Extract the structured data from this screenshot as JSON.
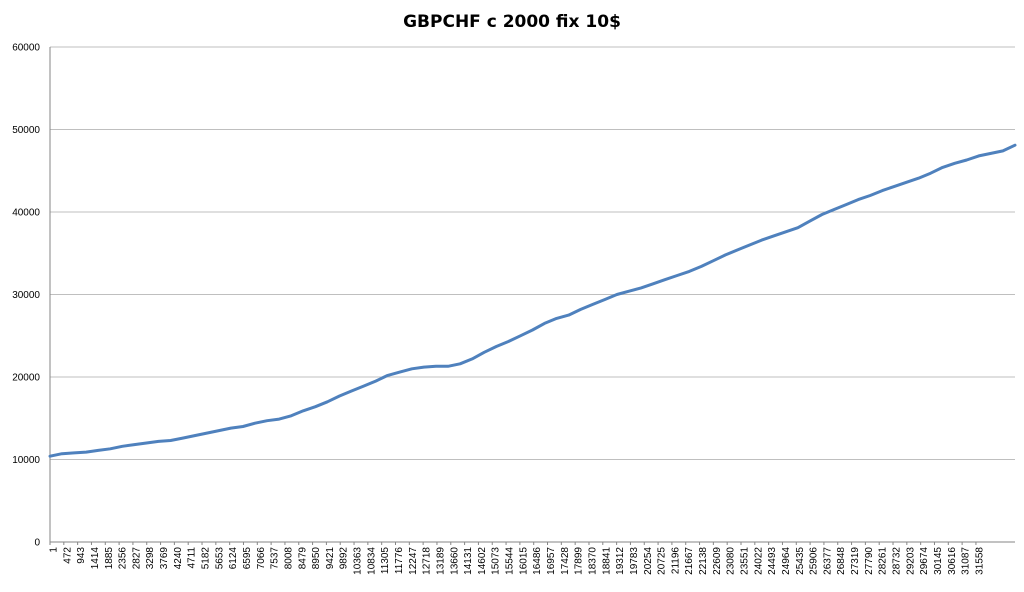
{
  "chart_data": {
    "type": "line",
    "title": "GBPCHF c 2000 fix 10$",
    "xlabel": "",
    "ylabel": "",
    "ylim": [
      0,
      60000
    ],
    "yticks": [
      0,
      10000,
      20000,
      30000,
      40000,
      50000,
      60000
    ],
    "ytick_labels": [
      "0",
      "10000",
      "20000",
      "30000",
      "40000",
      "50000",
      "60000"
    ],
    "xlim": [
      1,
      32000
    ],
    "xtick_labels": [
      "1",
      "472",
      "943",
      "1414",
      "1885",
      "2356",
      "2827",
      "3298",
      "3769",
      "4240",
      "4711",
      "5182",
      "5653",
      "6124",
      "6595",
      "7066",
      "7537",
      "8008",
      "8479",
      "8950",
      "9421",
      "9892",
      "10363",
      "10834",
      "11305",
      "11776",
      "12247",
      "12718",
      "13189",
      "13660",
      "14131",
      "14602",
      "15073",
      "15544",
      "16015",
      "16486",
      "16957",
      "17428",
      "17899",
      "18370",
      "18841",
      "19312",
      "19783",
      "20254",
      "20725",
      "21196",
      "21667",
      "22138",
      "22609",
      "23080",
      "23551",
      "24022",
      "24493",
      "24964",
      "25435",
      "25906",
      "26377",
      "26848",
      "27319",
      "27790",
      "28261",
      "28732",
      "29203",
      "29674",
      "30145",
      "30616",
      "31087",
      "31558"
    ],
    "grid": true,
    "legend": "none",
    "series": [
      {
        "color": "#4f81bd",
        "x": [
          1,
          400,
          800,
          1200,
          1600,
          2000,
          2400,
          2800,
          3200,
          3600,
          4000,
          4400,
          4800,
          5200,
          5600,
          6000,
          6400,
          6800,
          7200,
          7600,
          8000,
          8400,
          8800,
          9200,
          9600,
          10000,
          10400,
          10800,
          11200,
          11600,
          12000,
          12400,
          12800,
          13200,
          13600,
          14000,
          14400,
          14800,
          15200,
          15600,
          16000,
          16400,
          16800,
          17200,
          17600,
          18000,
          18400,
          18800,
          19200,
          19600,
          20000,
          20400,
          20800,
          21200,
          21600,
          22000,
          22400,
          22800,
          23200,
          23600,
          24000,
          24400,
          24800,
          25200,
          25600,
          26000,
          26400,
          26800,
          27200,
          27600,
          28000,
          28400,
          28800,
          29200,
          29600,
          30000,
          30400,
          30800,
          31200,
          31600,
          32000
        ],
        "values": [
          10400,
          10700,
          10800,
          10900,
          11100,
          11300,
          11600,
          11800,
          12000,
          12200,
          12300,
          12600,
          12900,
          13200,
          13500,
          13800,
          14000,
          14400,
          14700,
          14900,
          15300,
          15900,
          16400,
          17000,
          17700,
          18300,
          18900,
          19500,
          20200,
          20600,
          21000,
          21200,
          21300,
          21300,
          21600,
          22200,
          23000,
          23700,
          24300,
          25000,
          25700,
          26500,
          27100,
          27500,
          28200,
          28800,
          29400,
          30000,
          30400,
          30800,
          31300,
          31800,
          32300,
          32800,
          33400,
          34100,
          34800,
          35400,
          36000,
          36600,
          37100,
          37600,
          38100,
          38900,
          39700,
          40300,
          40900,
          41500,
          42000,
          42600,
          43100,
          43600,
          44100,
          44700,
          45400,
          45900,
          46300,
          46800,
          47100,
          47400,
          48100
        ]
      }
    ]
  }
}
